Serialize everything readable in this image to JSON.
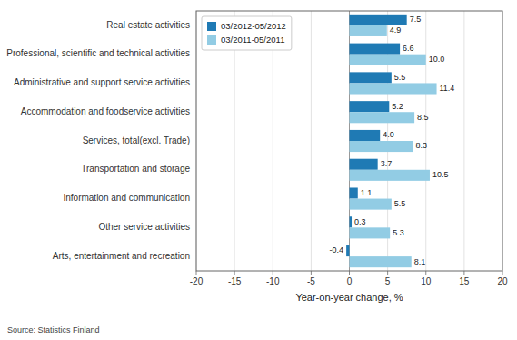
{
  "chart_data": {
    "type": "bar",
    "orientation": "horizontal",
    "categories": [
      "Arts, entertainment and recreation",
      "Other service activities",
      "Information and communication",
      "Transportation and storage",
      "Services, total(excl. Trade)",
      "Accommodation and foodservice activities",
      "Administrative and support service activities",
      "Professional, scientific and technical activities",
      "Real estate activities"
    ],
    "series": [
      {
        "name": "03/2012-05/2012",
        "color": "#1f7ab4",
        "values": [
          -0.4,
          0.3,
          1.1,
          3.7,
          4.0,
          5.2,
          5.5,
          6.6,
          7.5
        ],
        "value_labels": [
          "-0.4",
          "0.3",
          "1.1",
          "3.7",
          "4.0",
          "5.2",
          "5.5",
          "6.6",
          "7.5"
        ]
      },
      {
        "name": "03/2011-05/2011",
        "color": "#92cce4",
        "values": [
          8.1,
          5.3,
          5.5,
          10.5,
          8.3,
          8.5,
          11.4,
          10.0,
          4.9
        ],
        "value_labels": [
          "8.1",
          "5.3",
          "5.5",
          "10.5",
          "8.3",
          "8.5",
          "11.4",
          "10.0",
          "4.9"
        ]
      }
    ],
    "xlabel": "Year-on-year change, %",
    "xlim": [
      -20,
      20
    ],
    "xticks": [
      -20,
      -15,
      -10,
      -5,
      0,
      5,
      10,
      15,
      20
    ],
    "grid": true,
    "legend": "upper left",
    "data_labels": true,
    "source": "Source: Statistics Finland"
  }
}
